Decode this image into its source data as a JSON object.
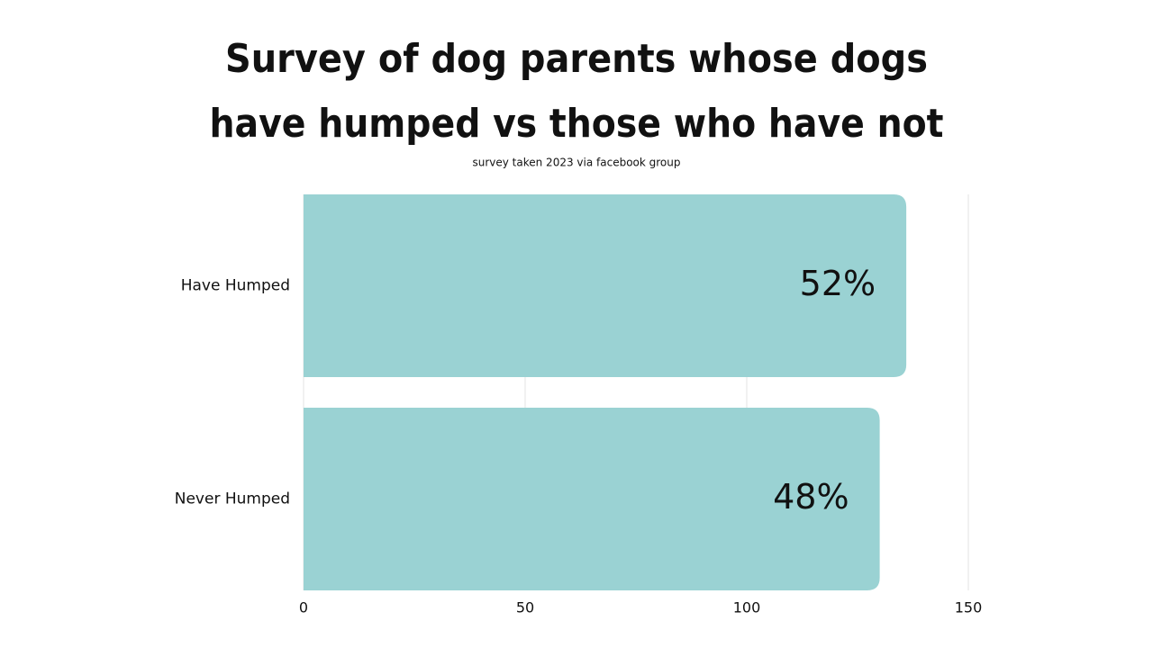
{
  "chart_data": {
    "type": "hbar",
    "title": [
      "Survey of dog parents whose dogs",
      "have humped vs those who have not"
    ],
    "subtitle": "survey taken 2023 via facebook group",
    "categories": [
      "Have Humped",
      "Never Humped"
    ],
    "values": [
      136,
      130
    ],
    "annotations": [
      "52%",
      "48%"
    ],
    "color": "#9ad2d3",
    "xlim": [
      0,
      150
    ],
    "xticks": [
      0,
      50,
      100,
      150
    ],
    "grid": true
  }
}
